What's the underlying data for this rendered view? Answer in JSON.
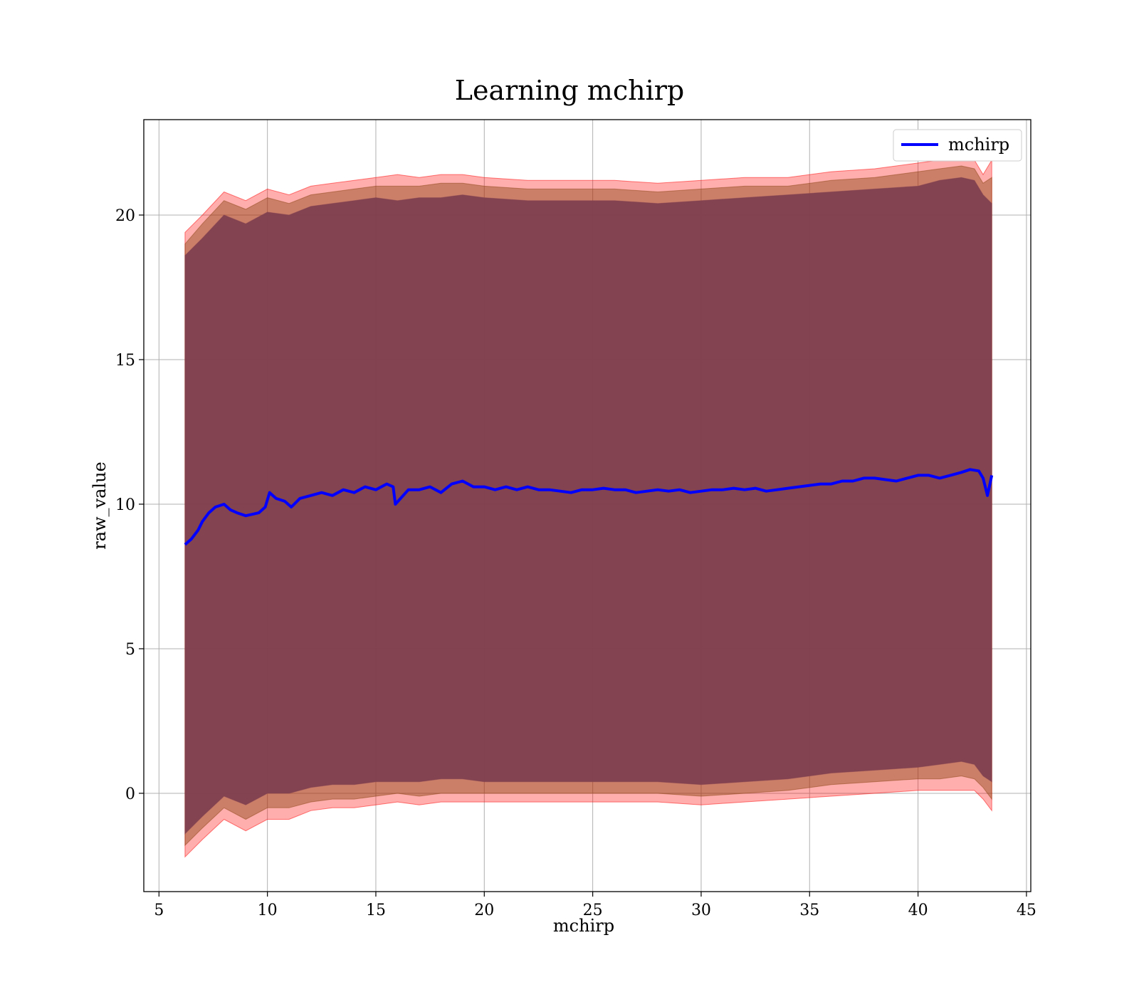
{
  "chart_data": {
    "type": "line",
    "title": "Learning mchirp",
    "xlabel": "mchirp",
    "ylabel": "raw_value",
    "xlim": [
      4.3,
      45.2
    ],
    "ylim": [
      -3.4,
      23.3
    ],
    "xticks": [
      5,
      10,
      15,
      20,
      25,
      30,
      35,
      40,
      45
    ],
    "yticks": [
      0,
      5,
      10,
      15,
      20
    ],
    "grid": true,
    "legend": {
      "placement": "top-right",
      "entries": [
        "mchirp"
      ]
    },
    "colors": {
      "line": "#0000ff",
      "band_outer": "#ff0000",
      "band_mid": "#8b4513",
      "band_inner": "#80404f"
    },
    "series": [
      {
        "name": "mchirp",
        "x": [
          6.2,
          6.5,
          6.8,
          7.0,
          7.3,
          7.6,
          8.0,
          8.3,
          8.6,
          9.0,
          9.3,
          9.6,
          9.9,
          10.1,
          10.4,
          10.8,
          11.1,
          11.5,
          12.0,
          12.5,
          13.0,
          13.5,
          14.0,
          14.5,
          15.0,
          15.5,
          15.8,
          15.9,
          16.5,
          17.0,
          17.5,
          18.0,
          18.5,
          19.0,
          19.5,
          20.0,
          20.5,
          21.0,
          21.5,
          22.0,
          22.5,
          23.0,
          23.5,
          24.0,
          24.5,
          25.0,
          25.5,
          26.0,
          26.5,
          27.0,
          27.5,
          28.0,
          28.5,
          29.0,
          29.5,
          30.0,
          30.5,
          31.0,
          31.5,
          32.0,
          32.5,
          33.0,
          33.5,
          34.0,
          34.5,
          35.0,
          35.5,
          36.0,
          36.5,
          37.0,
          37.5,
          38.0,
          38.5,
          39.0,
          39.5,
          40.0,
          40.5,
          41.0,
          41.5,
          42.0,
          42.4,
          42.8,
          43.0,
          43.2,
          43.4
        ],
        "y": [
          8.6,
          8.8,
          9.1,
          9.4,
          9.7,
          9.9,
          10.0,
          9.8,
          9.7,
          9.6,
          9.65,
          9.7,
          9.9,
          10.4,
          10.2,
          10.1,
          9.9,
          10.2,
          10.3,
          10.4,
          10.3,
          10.5,
          10.4,
          10.6,
          10.5,
          10.7,
          10.6,
          10.0,
          10.5,
          10.5,
          10.6,
          10.4,
          10.7,
          10.8,
          10.6,
          10.6,
          10.5,
          10.6,
          10.5,
          10.6,
          10.5,
          10.5,
          10.45,
          10.4,
          10.5,
          10.5,
          10.55,
          10.5,
          10.5,
          10.4,
          10.45,
          10.5,
          10.45,
          10.5,
          10.4,
          10.45,
          10.5,
          10.5,
          10.55,
          10.5,
          10.55,
          10.45,
          10.5,
          10.55,
          10.6,
          10.65,
          10.7,
          10.7,
          10.8,
          10.8,
          10.9,
          10.9,
          10.85,
          10.8,
          10.9,
          11.0,
          11.0,
          10.9,
          11.0,
          11.1,
          11.2,
          11.15,
          10.9,
          10.3,
          11.0
        ]
      }
    ],
    "bands": [
      {
        "x": [
          6.2,
          7.0,
          8.0,
          9.0,
          10.0,
          11.0,
          12.0,
          13.0,
          14.0,
          15.0,
          16.0,
          17.0,
          18.0,
          19.0,
          20.0,
          22.0,
          24.0,
          26.0,
          28.0,
          30.0,
          32.0,
          34.0,
          36.0,
          38.0,
          40.0,
          41.0,
          42.0,
          42.6,
          43.0,
          43.4
        ],
        "upper": [
          19.4,
          20.0,
          20.8,
          20.5,
          20.9,
          20.7,
          21.0,
          21.1,
          21.2,
          21.3,
          21.4,
          21.3,
          21.4,
          21.4,
          21.3,
          21.2,
          21.2,
          21.2,
          21.1,
          21.2,
          21.3,
          21.3,
          21.5,
          21.6,
          21.8,
          21.9,
          22.0,
          21.9,
          21.4,
          21.9
        ],
        "lower": [
          -2.2,
          -1.6,
          -0.9,
          -1.3,
          -0.9,
          -0.9,
          -0.6,
          -0.5,
          -0.5,
          -0.4,
          -0.3,
          -0.4,
          -0.3,
          -0.3,
          -0.3,
          -0.3,
          -0.3,
          -0.3,
          -0.3,
          -0.4,
          -0.3,
          -0.2,
          -0.1,
          0.0,
          0.1,
          0.1,
          0.1,
          0.1,
          -0.2,
          -0.6
        ]
      },
      {
        "x": [
          6.2,
          7.0,
          8.0,
          9.0,
          10.0,
          11.0,
          12.0,
          13.0,
          14.0,
          15.0,
          16.0,
          17.0,
          18.0,
          19.0,
          20.0,
          22.0,
          24.0,
          26.0,
          28.0,
          30.0,
          32.0,
          34.0,
          36.0,
          38.0,
          40.0,
          41.0,
          42.0,
          42.6,
          43.0,
          43.4
        ],
        "upper": [
          19.0,
          19.7,
          20.5,
          20.2,
          20.6,
          20.4,
          20.7,
          20.8,
          20.9,
          21.0,
          21.0,
          21.0,
          21.1,
          21.1,
          21.0,
          20.9,
          20.9,
          20.9,
          20.8,
          20.9,
          21.0,
          21.0,
          21.2,
          21.3,
          21.5,
          21.6,
          21.7,
          21.6,
          21.1,
          21.3
        ],
        "lower": [
          -1.8,
          -1.2,
          -0.5,
          -0.9,
          -0.5,
          -0.5,
          -0.3,
          -0.2,
          -0.2,
          -0.1,
          0.0,
          -0.1,
          0.0,
          0.0,
          0.0,
          0.0,
          0.0,
          0.0,
          0.0,
          -0.1,
          0.0,
          0.1,
          0.3,
          0.4,
          0.5,
          0.5,
          0.6,
          0.5,
          0.2,
          -0.2
        ]
      },
      {
        "x": [
          6.2,
          7.0,
          8.0,
          9.0,
          10.0,
          11.0,
          12.0,
          13.0,
          14.0,
          15.0,
          16.0,
          17.0,
          18.0,
          19.0,
          20.0,
          22.0,
          24.0,
          26.0,
          28.0,
          30.0,
          32.0,
          34.0,
          36.0,
          38.0,
          40.0,
          41.0,
          42.0,
          42.6,
          43.0,
          43.4
        ],
        "upper": [
          18.6,
          19.2,
          20.0,
          19.7,
          20.1,
          20.0,
          20.3,
          20.4,
          20.5,
          20.6,
          20.5,
          20.6,
          20.6,
          20.7,
          20.6,
          20.5,
          20.5,
          20.5,
          20.4,
          20.5,
          20.6,
          20.7,
          20.8,
          20.9,
          21.0,
          21.2,
          21.3,
          21.2,
          20.7,
          20.4
        ],
        "lower": [
          -1.4,
          -0.8,
          -0.1,
          -0.4,
          0.0,
          0.0,
          0.2,
          0.3,
          0.3,
          0.4,
          0.4,
          0.4,
          0.5,
          0.5,
          0.4,
          0.4,
          0.4,
          0.4,
          0.4,
          0.3,
          0.4,
          0.5,
          0.7,
          0.8,
          0.9,
          1.0,
          1.1,
          1.0,
          0.6,
          0.4
        ]
      }
    ]
  }
}
